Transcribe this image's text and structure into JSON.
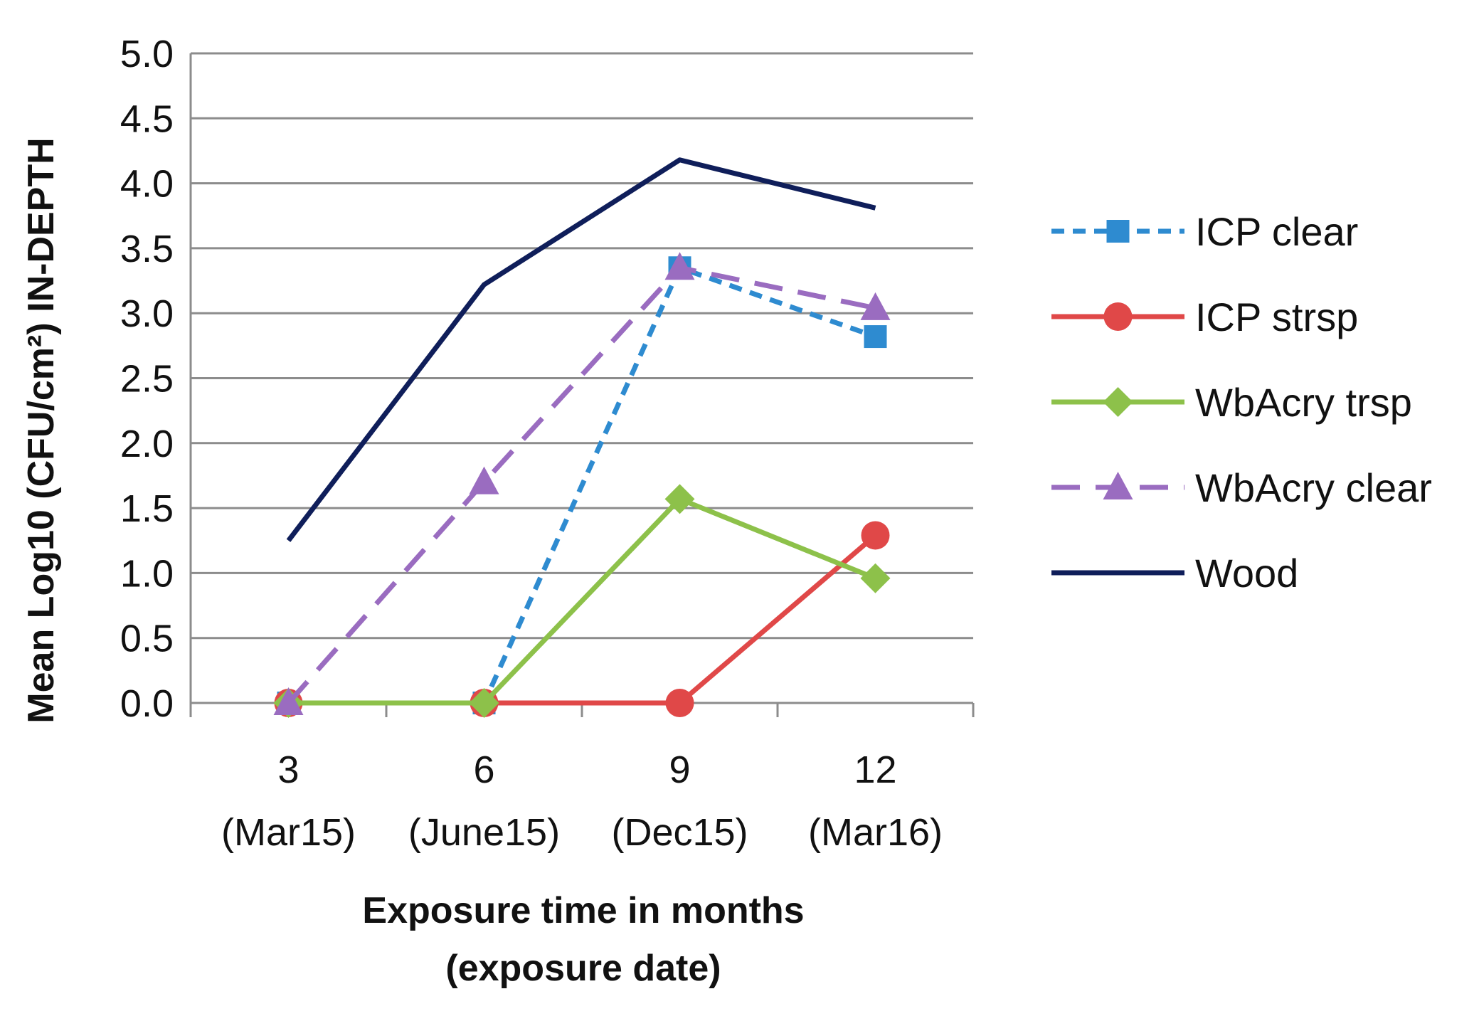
{
  "chart_data": {
    "type": "line",
    "title": "",
    "xlabel_lines": [
      "Exposure time in months",
      "(exposure date)"
    ],
    "ylabel": "Mean Log10 (CFU/cm²) IN-DEPTH",
    "ylim": [
      0,
      5
    ],
    "y_ticks": [
      "0.0",
      "0.5",
      "1.0",
      "1.5",
      "2.0",
      "2.5",
      "3.0",
      "3.5",
      "4.0",
      "4.5",
      "5.0"
    ],
    "grid": true,
    "legend_position": "right",
    "categories": [
      {
        "month": "3",
        "date": "(Mar15)"
      },
      {
        "month": "6",
        "date": "(June15)"
      },
      {
        "month": "9",
        "date": "(Dec15)"
      },
      {
        "month": "12",
        "date": "(Mar16)"
      }
    ],
    "series": [
      {
        "name": "ICP clear",
        "values": [
          0.0,
          0.0,
          3.35,
          2.82
        ],
        "color": "#2E8BD0",
        "dash": "short-dash",
        "marker": "square"
      },
      {
        "name": "ICP strsp",
        "values": [
          0.0,
          0.0,
          0.0,
          1.29
        ],
        "color": "#E04848",
        "dash": "solid",
        "marker": "circle"
      },
      {
        "name": "WbAcry trsp",
        "values": [
          0.0,
          0.0,
          1.57,
          0.96
        ],
        "color": "#8DC14A",
        "dash": "solid",
        "marker": "diamond"
      },
      {
        "name": "WbAcry clear",
        "values": [
          0.0,
          1.7,
          3.35,
          3.04
        ],
        "color": "#9A6CC0",
        "dash": "long-dash",
        "marker": "triangle"
      },
      {
        "name": "Wood",
        "values": [
          1.25,
          3.22,
          4.18,
          3.81
        ],
        "color": "#0F1E5A",
        "dash": "solid",
        "marker": "none"
      }
    ]
  }
}
